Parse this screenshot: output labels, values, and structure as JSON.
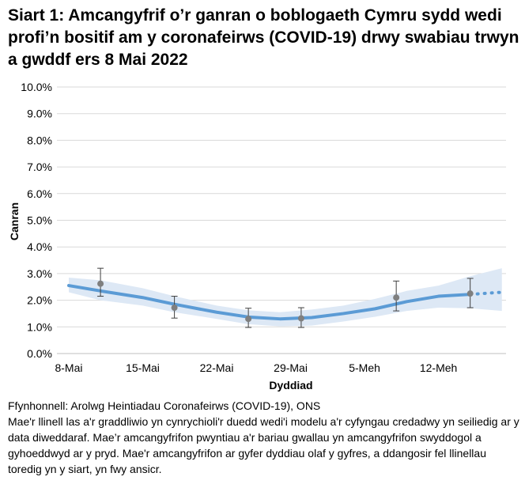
{
  "chart_data": {
    "type": "line",
    "title": "Siart 1: Amcangyfrif o’r ganran o boblogaeth Cymru sydd wedi profi’n bositif am y coronafeirws (COVID-19) drwy swabiau trwyn a gwddf ers 8 Mai 2022",
    "xlabel": "Dyddiad",
    "ylabel": "Canran",
    "ylim": [
      0,
      10
    ],
    "yticks": [
      "0.0%",
      "1.0%",
      "2.0%",
      "3.0%",
      "4.0%",
      "5.0%",
      "6.0%",
      "7.0%",
      "8.0%",
      "9.0%",
      "10.0%"
    ],
    "xticks": [
      "8-Mai",
      "15-Mai",
      "22-Mai",
      "29-Mai",
      "5-Meh",
      "12-Meh"
    ],
    "x_range": [
      "2022-05-08",
      "2022-06-18"
    ],
    "grid": true,
    "modelled_trend": {
      "x": [
        "2022-05-08",
        "2022-05-11",
        "2022-05-15",
        "2022-05-18",
        "2022-05-22",
        "2022-05-25",
        "2022-05-28",
        "2022-05-31",
        "2022-06-03",
        "2022-06-06",
        "2022-06-09",
        "2022-06-12",
        "2022-06-15"
      ],
      "y": [
        2.55,
        2.35,
        2.1,
        1.85,
        1.55,
        1.37,
        1.3,
        1.35,
        1.5,
        1.68,
        1.95,
        2.15,
        2.22
      ],
      "lower": [
        2.3,
        2.0,
        1.8,
        1.55,
        1.3,
        1.1,
        1.02,
        1.05,
        1.2,
        1.38,
        1.6,
        1.72,
        1.7
      ],
      "upper": [
        2.85,
        2.75,
        2.45,
        2.15,
        1.8,
        1.62,
        1.55,
        1.65,
        1.8,
        2.05,
        2.35,
        2.55,
        2.9
      ]
    },
    "provisional_trend": {
      "x": [
        "2022-06-15",
        "2022-06-18"
      ],
      "y": [
        2.22,
        2.3
      ],
      "lower": [
        1.7,
        1.6
      ],
      "upper": [
        2.9,
        3.2
      ]
    },
    "official_estimates": {
      "x": [
        "2022-05-11",
        "2022-05-18",
        "2022-05-25",
        "2022-05-30",
        "2022-06-08",
        "2022-06-15"
      ],
      "y": [
        2.62,
        1.72,
        1.3,
        1.32,
        2.1,
        2.25
      ],
      "lower": [
        2.15,
        1.33,
        0.98,
        0.98,
        1.6,
        1.72
      ],
      "upper": [
        3.2,
        2.15,
        1.7,
        1.72,
        2.72,
        2.82
      ]
    },
    "colors": {
      "line": "#5b9bd5",
      "band": "#dde8f5",
      "points": "#7f7f7f",
      "grid": "#d9d9d9"
    }
  },
  "notes": {
    "source": "Ffynhonnell: Arolwg Heintiadau Coronafeirws (COVID-19), ONS",
    "text": "Mae'r llinell las a'r graddliwio yn cynrychioli'r duedd wedi'i modelu a'r cyfyngau credadwy yn seiliedig ar y data diweddaraf. Mae’r amcangyfrifon pwyntiau a'r bariau gwallau yn amcangyfrifon swyddogol a gyhoeddwyd ar y pryd. Mae'r amcangyfrifon ar gyfer dyddiau olaf y gyfres, a ddangosir fel llinellau toredig yn y siart, yn fwy ansicr."
  }
}
